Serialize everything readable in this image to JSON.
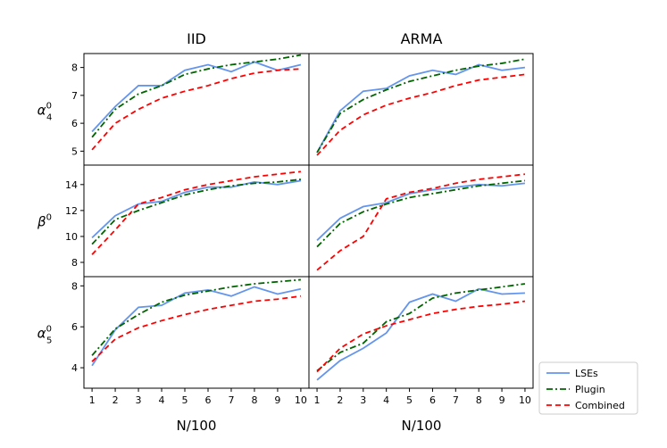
{
  "chart_data": {
    "type": "line",
    "x": [
      1,
      2,
      3,
      4,
      5,
      6,
      7,
      8,
      9,
      10
    ],
    "xlabel": "N/100",
    "columns": [
      "IID",
      "ARMA"
    ],
    "legend": {
      "placement": "bottom-right outside",
      "entries": [
        {
          "name": "LSEs",
          "color": "#6495ed",
          "dash": "solid"
        },
        {
          "name": "Plugin",
          "color": "#006400",
          "dash": "dashdot"
        },
        {
          "name": "Combined",
          "color": "#ff0000",
          "dash": "dashed"
        }
      ]
    },
    "rows": [
      {
        "ylabel": "α⁰₄",
        "ylabel_main": "α",
        "ylabel_sup": "0",
        "ylabel_sub": "4",
        "ylim": [
          4.5,
          8.5
        ],
        "yticks": [
          5,
          6,
          7,
          8
        ],
        "panels": [
          {
            "column": "IID",
            "series": [
              {
                "name": "LSEs",
                "values": [
                  5.7,
                  6.6,
                  7.35,
                  7.35,
                  7.9,
                  8.1,
                  7.85,
                  8.2,
                  7.9,
                  8.1
                ]
              },
              {
                "name": "Plugin",
                "values": [
                  5.5,
                  6.5,
                  7.05,
                  7.35,
                  7.75,
                  7.95,
                  8.1,
                  8.2,
                  8.3,
                  8.45
                ]
              },
              {
                "name": "Combined",
                "values": [
                  5.05,
                  6.0,
                  6.5,
                  6.9,
                  7.15,
                  7.35,
                  7.6,
                  7.8,
                  7.9,
                  7.95
                ]
              }
            ]
          },
          {
            "column": "ARMA",
            "series": [
              {
                "name": "LSEs",
                "values": [
                  4.95,
                  6.45,
                  7.15,
                  7.25,
                  7.7,
                  7.9,
                  7.75,
                  8.1,
                  7.9,
                  8.0
                ]
              },
              {
                "name": "Plugin",
                "values": [
                  4.95,
                  6.35,
                  6.85,
                  7.2,
                  7.5,
                  7.7,
                  7.9,
                  8.05,
                  8.15,
                  8.3
                ]
              },
              {
                "name": "Combined",
                "values": [
                  4.85,
                  5.75,
                  6.3,
                  6.65,
                  6.9,
                  7.1,
                  7.35,
                  7.55,
                  7.65,
                  7.75
                ]
              }
            ]
          }
        ]
      },
      {
        "ylabel": "β⁰",
        "ylabel_main": "β",
        "ylabel_sup": "0",
        "ylabel_sub": "",
        "ylim": [
          6.9,
          15.5
        ],
        "yticks": [
          8,
          10,
          12,
          14
        ],
        "panels": [
          {
            "column": "IID",
            "series": [
              {
                "name": "LSEs",
                "values": [
                  9.9,
                  11.6,
                  12.5,
                  12.7,
                  13.4,
                  13.8,
                  13.8,
                  14.2,
                  14.0,
                  14.3
                ]
              },
              {
                "name": "Plugin",
                "values": [
                  9.4,
                  11.3,
                  12.0,
                  12.6,
                  13.2,
                  13.6,
                  13.9,
                  14.1,
                  14.2,
                  14.4
                ]
              },
              {
                "name": "Combined",
                "values": [
                  8.6,
                  10.5,
                  12.5,
                  13.0,
                  13.6,
                  14.0,
                  14.3,
                  14.6,
                  14.8,
                  15.0
                ]
              }
            ]
          },
          {
            "column": "ARMA",
            "series": [
              {
                "name": "LSEs",
                "values": [
                  9.7,
                  11.4,
                  12.3,
                  12.6,
                  13.3,
                  13.6,
                  13.8,
                  14.0,
                  13.9,
                  14.1
                ]
              },
              {
                "name": "Plugin",
                "values": [
                  9.2,
                  11.0,
                  11.9,
                  12.5,
                  13.0,
                  13.3,
                  13.6,
                  13.9,
                  14.1,
                  14.3
                ]
              },
              {
                "name": "Combined",
                "values": [
                  7.4,
                  8.9,
                  10.0,
                  12.9,
                  13.4,
                  13.7,
                  14.1,
                  14.4,
                  14.6,
                  14.8
                ]
              }
            ]
          }
        ]
      },
      {
        "ylabel": "α⁰₅",
        "ylabel_main": "α",
        "ylabel_sup": "0",
        "ylabel_sub": "5",
        "ylim": [
          3.0,
          8.45
        ],
        "yticks": [
          4,
          6,
          8
        ],
        "panels": [
          {
            "column": "IID",
            "series": [
              {
                "name": "LSEs",
                "values": [
                  4.1,
                  5.85,
                  6.95,
                  7.05,
                  7.65,
                  7.8,
                  7.5,
                  7.95,
                  7.6,
                  7.85
                ]
              },
              {
                "name": "Plugin",
                "values": [
                  4.6,
                  5.9,
                  6.6,
                  7.2,
                  7.55,
                  7.75,
                  7.95,
                  8.1,
                  8.2,
                  8.3
                ]
              },
              {
                "name": "Combined",
                "values": [
                  4.3,
                  5.4,
                  5.95,
                  6.3,
                  6.6,
                  6.85,
                  7.05,
                  7.25,
                  7.35,
                  7.5
                ]
              }
            ]
          },
          {
            "column": "ARMA",
            "series": [
              {
                "name": "LSEs",
                "values": [
                  3.4,
                  4.35,
                  4.95,
                  5.7,
                  7.2,
                  7.6,
                  7.25,
                  7.85,
                  7.6,
                  7.65
                ]
              },
              {
                "name": "Plugin",
                "values": [
                  3.85,
                  4.75,
                  5.2,
                  6.25,
                  6.65,
                  7.4,
                  7.65,
                  7.8,
                  7.95,
                  8.1
                ]
              },
              {
                "name": "Combined",
                "values": [
                  3.8,
                  4.95,
                  5.65,
                  6.05,
                  6.35,
                  6.65,
                  6.85,
                  7.0,
                  7.1,
                  7.25
                ]
              }
            ]
          }
        ]
      }
    ]
  }
}
